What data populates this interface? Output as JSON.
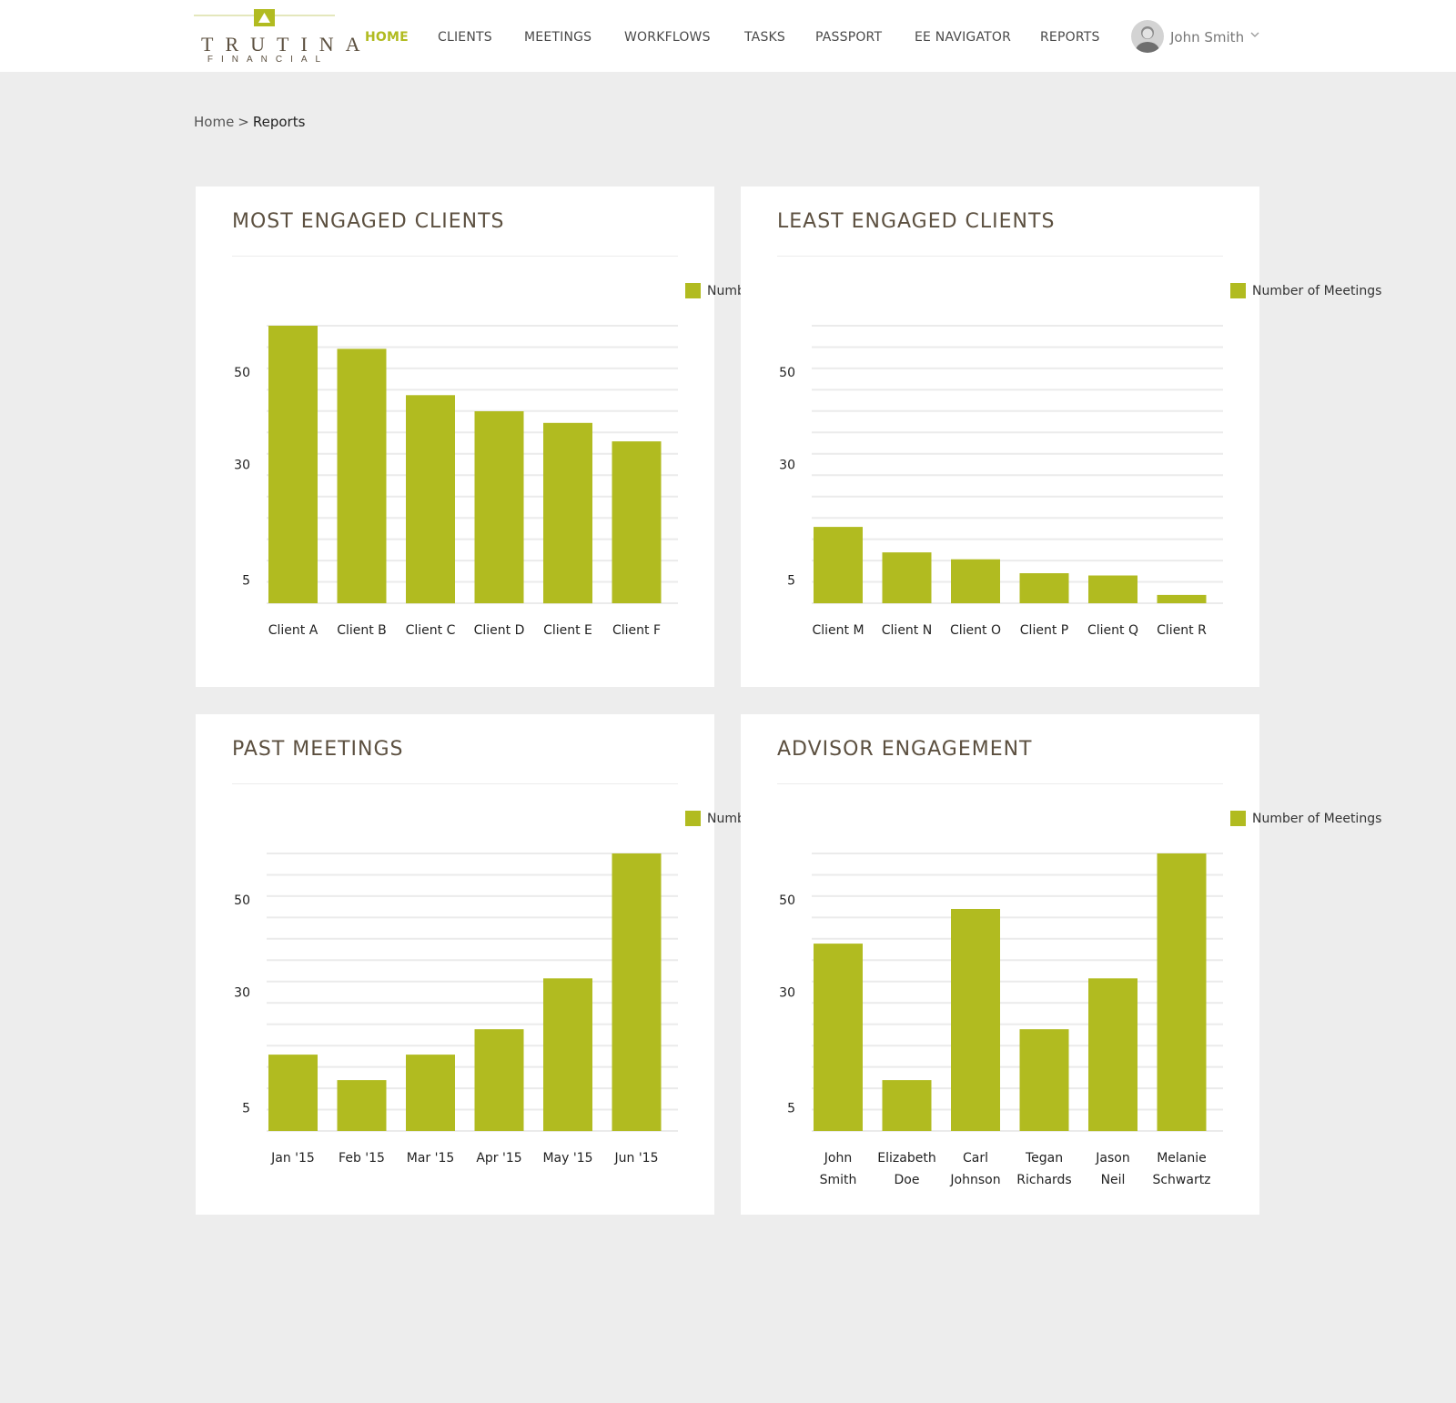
{
  "brand": {
    "name": "TRUTINA",
    "sub": "FINANCIAL",
    "accent": "#b1bb20",
    "text_color": "#5c5040"
  },
  "nav": {
    "items": [
      {
        "id": "home",
        "label": "HOME",
        "active": true
      },
      {
        "id": "clients",
        "label": "CLIENTS"
      },
      {
        "id": "meetings",
        "label": "MEETINGS"
      },
      {
        "id": "workflows",
        "label": "WORKFLOWS"
      },
      {
        "id": "tasks",
        "label": "TASKS"
      },
      {
        "id": "passport",
        "label": "PASSPORT"
      },
      {
        "id": "ee-navigator",
        "label": "EE NAVIGATOR"
      },
      {
        "id": "reports",
        "label": "REPORTS"
      }
    ],
    "user": {
      "name": "John Smith",
      "chevron_icon": "chevron-down-icon"
    }
  },
  "breadcrumb": {
    "home": "Home",
    "separator": ">",
    "current": "Reports"
  },
  "cards": [
    {
      "title": "MOST ENGAGED CLIENTS",
      "legend": "Number of Meetings"
    },
    {
      "title": "LEAST ENGAGED CLIENTS",
      "legend": "Number of Meetings"
    },
    {
      "title": "PAST MEETINGS",
      "legend": "Number of Meetings"
    },
    {
      "title": "ADVISOR ENGAGEMENT",
      "legend": "Number of Meetings"
    }
  ],
  "chart_data": [
    {
      "type": "bar",
      "title": "MOST ENGAGED CLIENTS",
      "categories": [
        "Client A",
        "Client B",
        "Client C",
        "Client D",
        "Client E",
        "Client F"
      ],
      "series": [
        {
          "name": "Number of Meetings",
          "values": [
            60,
            55,
            45,
            41.5,
            39,
            35
          ]
        }
      ],
      "yticks": [
        5,
        30,
        50
      ],
      "ylim": [
        0,
        60
      ],
      "grid": true,
      "legend_position": "top-right",
      "color": "#b1bb20"
    },
    {
      "type": "bar",
      "title": "LEAST ENGAGED CLIENTS",
      "categories": [
        "Client M",
        "Client N",
        "Client O",
        "Client P",
        "Client Q",
        "Client R"
      ],
      "series": [
        {
          "name": "Number of Meetings",
          "values": [
            16.5,
            11,
            9.5,
            6.5,
            6,
            1.8
          ]
        }
      ],
      "yticks": [
        5,
        30,
        50
      ],
      "ylim": [
        0,
        60
      ],
      "grid": true,
      "legend_position": "top-right",
      "color": "#b1bb20"
    },
    {
      "type": "bar",
      "title": "PAST MEETINGS",
      "categories": [
        "Jan '15",
        "Feb '15",
        "Mar '15",
        "Apr '15",
        "May '15",
        "Jun '15"
      ],
      "series": [
        {
          "name": "Number of Meetings",
          "values": [
            16.5,
            11,
            16.5,
            22,
            33,
            60
          ]
        }
      ],
      "yticks": [
        5,
        30,
        50
      ],
      "ylim": [
        0,
        60
      ],
      "grid": true,
      "legend_position": "top-right",
      "color": "#b1bb20"
    },
    {
      "type": "bar",
      "title": "ADVISOR ENGAGEMENT",
      "categories": [
        [
          "John",
          "Smith"
        ],
        [
          "Elizabeth",
          "Doe"
        ],
        [
          "Carl",
          "Johnson"
        ],
        [
          "Tegan",
          "Richards"
        ],
        [
          "Jason",
          "Neil"
        ],
        [
          "Melanie",
          "Schwartz"
        ]
      ],
      "series": [
        {
          "name": "Number of Meetings",
          "values": [
            40.5,
            11,
            48,
            22,
            33,
            60
          ]
        }
      ],
      "yticks": [
        5,
        30,
        50
      ],
      "ylim": [
        0,
        60
      ],
      "grid": true,
      "legend_position": "top-right",
      "color": "#b1bb20"
    }
  ]
}
